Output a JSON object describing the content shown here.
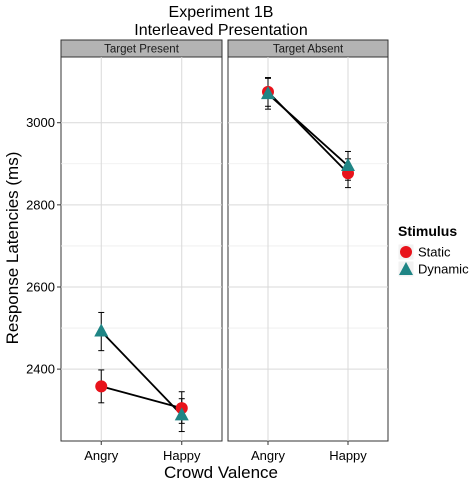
{
  "chart_data": {
    "type": "line",
    "title": "Experiment 1B",
    "subtitle": "Interleaved Presentation",
    "xlabel": "Crowd Valence",
    "ylabel": "Response Latencies (ms)",
    "ylim": [
      2225,
      3160
    ],
    "yticks": [
      2400,
      2600,
      2800,
      3000
    ],
    "categories": [
      "Angry",
      "Happy"
    ],
    "grid": true,
    "legend": {
      "title": "Stimulus",
      "position": "right",
      "entries": [
        {
          "label": "Static",
          "color": "#e8131b",
          "marker": "circle"
        },
        {
          "label": "Dynamic",
          "color": "#1f8585",
          "marker": "triangle"
        }
      ]
    },
    "panels": [
      {
        "label": "Target Present",
        "series": [
          {
            "name": "Static",
            "values": [
              2358,
              2305
            ],
            "err_low": [
              2318,
              2268
            ],
            "err_high": [
              2398,
              2345
            ]
          },
          {
            "name": "Dynamic",
            "values": [
              2492,
              2288
            ],
            "err_low": [
              2445,
              2248
            ],
            "err_high": [
              2538,
              2328
            ]
          }
        ]
      },
      {
        "label": "Target Absent",
        "series": [
          {
            "name": "Static",
            "values": [
              3075,
              2877
            ],
            "err_low": [
              3040,
              2842
            ],
            "err_high": [
              3110,
              2912
            ]
          },
          {
            "name": "Dynamic",
            "values": [
              3070,
              2895
            ],
            "err_low": [
              3033,
              2860
            ],
            "err_high": [
              3108,
              2930
            ]
          }
        ]
      }
    ]
  }
}
